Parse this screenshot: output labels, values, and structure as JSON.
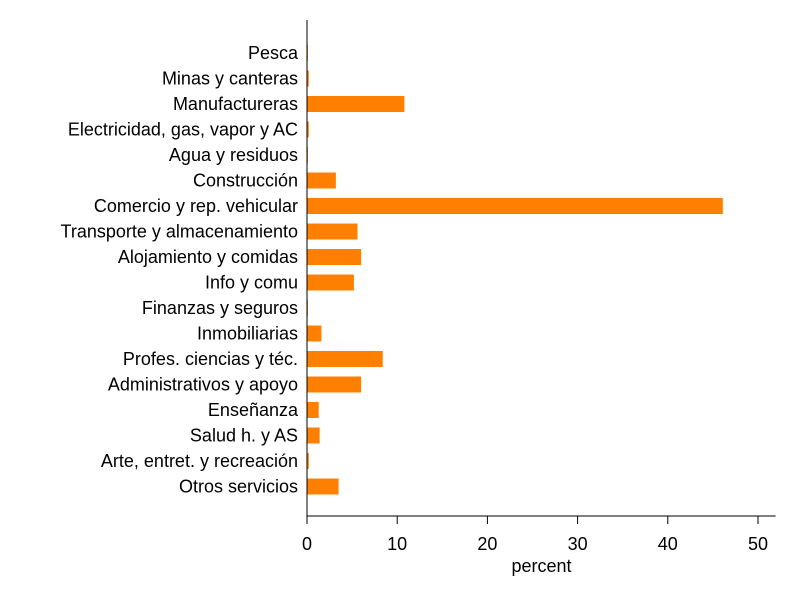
{
  "colors": {
    "bar": "#ff8000",
    "axis": "#000000",
    "background": "#ffffff"
  },
  "chart_data": {
    "type": "bar",
    "orientation": "horizontal",
    "categories": [
      "Pesca",
      "Minas y canteras",
      "Manufactureras",
      "Electricidad, gas, vapor y AC",
      "Agua y residuos",
      "Construcción",
      "Comercio y rep. vehicular",
      "Transporte y almacenamiento",
      "Alojamiento y comidas",
      "Info y comu",
      "Finanzas y seguros",
      "Inmobiliarias",
      "Profes. ciencias y téc.",
      "Administrativos y apoyo",
      "Enseñanza",
      "Salud h. y AS",
      "Arte, entret. y recreación",
      "Otros servicios"
    ],
    "values": [
      0.1,
      0.2,
      10.8,
      0.2,
      0.1,
      3.2,
      46.1,
      5.6,
      6.0,
      5.2,
      0.1,
      1.6,
      8.4,
      6.0,
      1.3,
      1.4,
      0.2,
      3.5
    ],
    "title": "",
    "xlabel": "percent",
    "ylabel": "",
    "xlim": [
      0,
      52
    ],
    "xticks": [
      0,
      10,
      20,
      30,
      40,
      50
    ],
    "grid": false,
    "legend": "none"
  }
}
